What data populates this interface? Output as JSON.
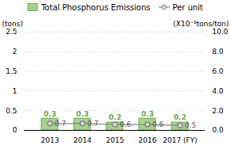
{
  "chart_data": {
    "type": "bar",
    "categories": [
      "2013",
      "2014",
      "2015",
      "2016",
      "2017 (FY)"
    ],
    "series": [
      {
        "name": "Total Phosphorus Emissions",
        "type": "bar",
        "color": "#a8d08d",
        "values": [
          0.3,
          0.3,
          0.2,
          0.3,
          0.2
        ]
      },
      {
        "name": "Per unit",
        "type": "line",
        "axis": "y2",
        "color": "#888888",
        "marker": "circle",
        "values": [
          0.7,
          0.7,
          0.6,
          0.6,
          0.5
        ]
      }
    ],
    "ylabel": "(tons)",
    "y2label": "(X10⁻⁶tons/ton)",
    "ylim": [
      0,
      2.5
    ],
    "yticks": [
      0,
      0.5,
      1,
      1.5,
      2,
      2.5
    ],
    "y2lim": [
      0,
      10.0
    ],
    "y2ticks": [
      {
        "value": 0,
        "label": "0.0"
      },
      {
        "value": 2,
        "label": "2.0"
      },
      {
        "value": 4,
        "label": "4.0"
      },
      {
        "value": 6,
        "label": "6.0"
      },
      {
        "value": 8,
        "label": "8.0"
      },
      {
        "value": 10,
        "label": "10.0"
      }
    ],
    "grid": true,
    "legend": "top",
    "data_labels": true
  }
}
